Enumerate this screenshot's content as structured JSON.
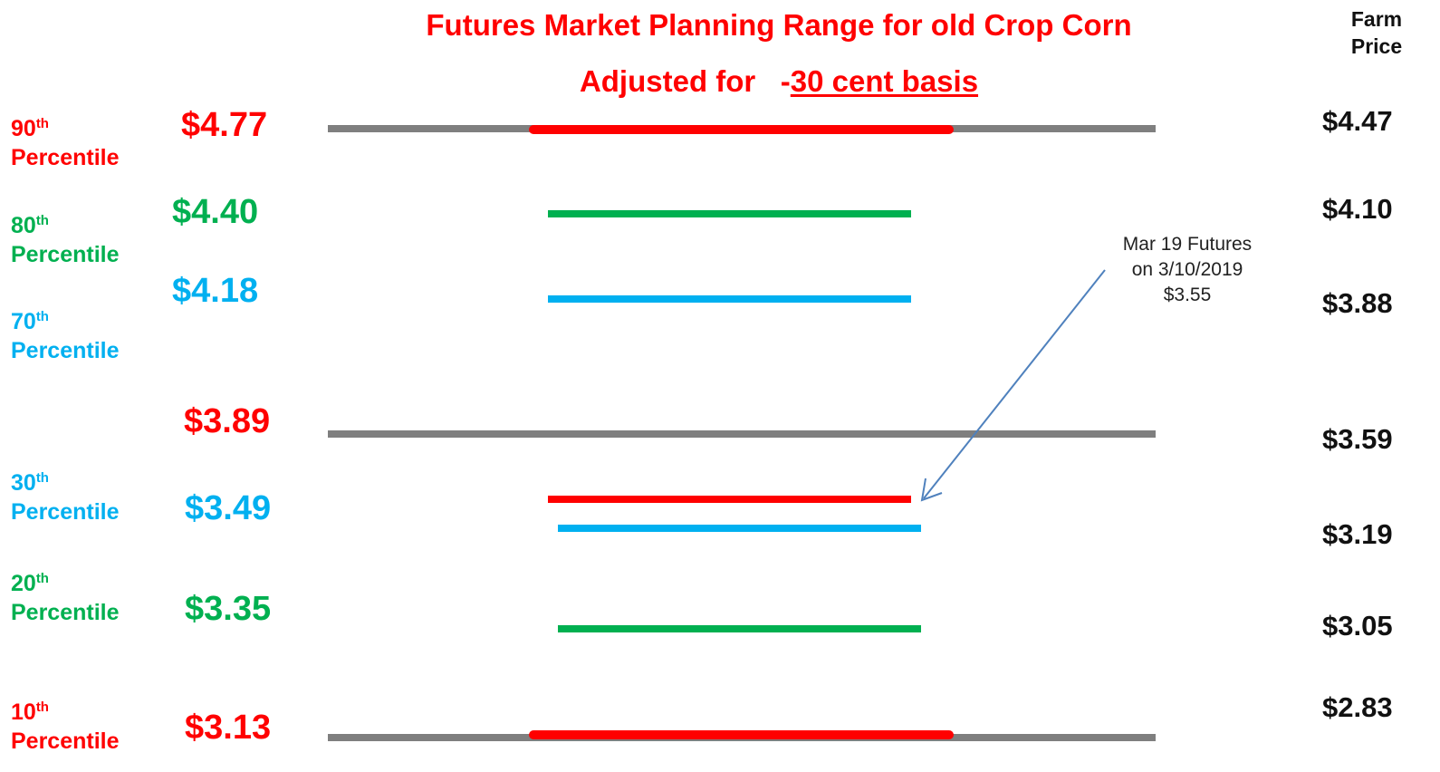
{
  "colors": {
    "red": "#ff0000",
    "green": "#00b050",
    "blue": "#00b0f0",
    "gray": "#7f7f7f",
    "black": "#111111",
    "arrow": "#4f81bd"
  },
  "title": {
    "line1": "Futures Market Planning Range for  old Crop Corn",
    "line2_prefix": "Adjusted for   -",
    "line2_basis": "30 cent basis"
  },
  "farm_price_header": {
    "line1": "Farm",
    "line2": "Price"
  },
  "percentiles": {
    "p90": {
      "num": "90",
      "sup": "th",
      "word": "Percentile"
    },
    "p80": {
      "num": "80",
      "sup": "th",
      "word": "Percentile"
    },
    "p70": {
      "num": "70",
      "sup": "th",
      "word": "Percentile"
    },
    "p30": {
      "num": "30",
      "sup": "th",
      "word": "Percentile"
    },
    "p20": {
      "num": "20",
      "sup": "th",
      "word": "Percentile"
    },
    "p10": {
      "num": "10",
      "sup": "th",
      "word": "Percentile"
    }
  },
  "futures_prices": {
    "p90": "$4.77",
    "p80": "$4.40",
    "p70": "$4.18",
    "mid": "$3.89",
    "p30": "$3.49",
    "p20": "$3.35",
    "p10": "$3.13"
  },
  "farm_prices": {
    "p90": "$4.47",
    "p80": "$4.10",
    "p70": "$3.88",
    "mid": "$3.59",
    "p30": "$3.19",
    "p20": "$3.05",
    "p10": "$2.83"
  },
  "annotation": {
    "line1": "Mar 19 Futures",
    "line2": "on 3/10/2019",
    "line3": "$3.55"
  }
}
